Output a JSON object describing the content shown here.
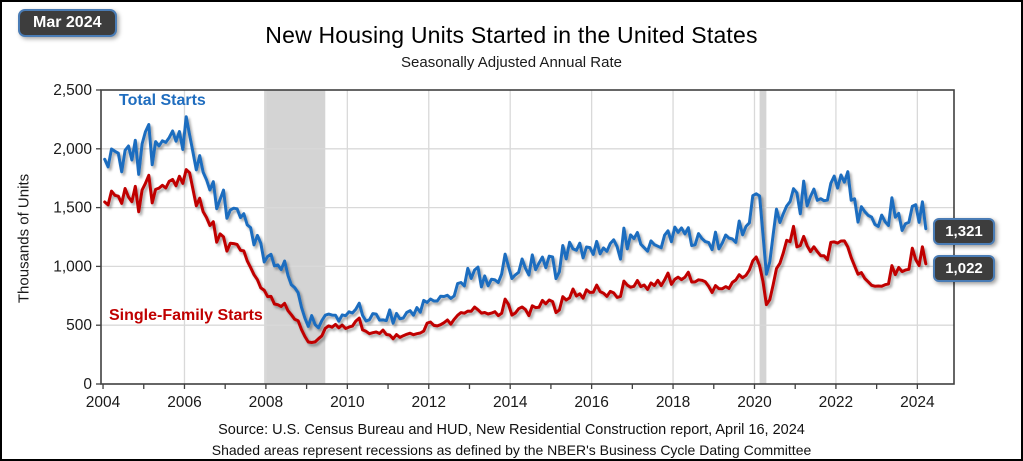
{
  "badge": {
    "label": "Mar 2024"
  },
  "header": {
    "title": "New Housing Units Started in the United States",
    "subtitle": "Seasonally Adjusted Annual Rate"
  },
  "y_axis": {
    "label": "Thousands of Units",
    "ticks": [
      "0",
      "500",
      "1,000",
      "1,500",
      "2,000",
      "2,500"
    ]
  },
  "x_axis": {
    "ticks": [
      "2004",
      "2006",
      "2008",
      "2010",
      "2012",
      "2014",
      "2016",
      "2018",
      "2020",
      "2022",
      "2024"
    ]
  },
  "series_labels": {
    "total": "Total Starts",
    "single": "Single-Family Starts"
  },
  "callouts": {
    "total": "1,321",
    "single": "1,022"
  },
  "footer": {
    "line1": "Source:  U.S. Census Bureau and HUD, New Residential Construction report, April 16, 2024",
    "line2": "Shaded areas represent recessions as defined by the NBER's Business Cycle Dating Committee"
  },
  "colors": {
    "total_line": "#1f6dbf",
    "single_line": "#c00000",
    "recession_band": "#d4d4d4",
    "gridline": "#d9d9d9",
    "axis": "#404040",
    "badge_bg": "#3d3d3d",
    "badge_border": "#4a7cb5"
  },
  "chart_data": {
    "type": "line",
    "title": "New Housing Units Started in the United States",
    "subtitle": "Seasonally Adjusted Annual Rate",
    "xlabel": "",
    "ylabel": "Thousands of Units",
    "ylim": [
      0,
      2500
    ],
    "xlim": [
      2004,
      2025
    ],
    "frequency": "monthly",
    "x_start": "2004-01",
    "x_end": "2024-03",
    "grid": true,
    "legend_position": "labels-on-chart",
    "recessions": [
      {
        "start": "2007-12",
        "end": "2009-06",
        "note": "NBER recession"
      },
      {
        "start": "2020-02",
        "end": "2020-04",
        "note": "NBER recession"
      }
    ],
    "latest_values": {
      "total_starts": 1321,
      "single_family_starts": 1022
    },
    "series": [
      {
        "name": "Total Starts",
        "color": "#1f6dbf",
        "values": [
          1911,
          1846,
          1998,
          1979,
          1963,
          1804,
          1987,
          2024,
          1905,
          2072,
          1782,
          2042,
          2144,
          2207,
          1864,
          2061,
          2025,
          2068,
          2054,
          2095,
          2151,
          2065,
          2147,
          1994,
          2273,
          2119,
          1969,
          1821,
          1942,
          1802,
          1737,
          1650,
          1720,
          1491,
          1570,
          1649,
          1409,
          1480,
          1495,
          1490,
          1415,
          1448,
          1354,
          1330,
          1183,
          1264,
          1197,
          1037,
          1084,
          1103,
          1005,
          1013,
          973,
          1046,
          923,
          844,
          820,
          777,
          652,
          560,
          490,
          582,
          505,
          478,
          540,
          585,
          594,
          586,
          585,
          534,
          588,
          581,
          614,
          604,
          636,
          687,
          583,
          536,
          546,
          599,
          594,
          543,
          545,
          539,
          630,
          517,
          600,
          554,
          561,
          608,
          623,
          585,
          650,
          610,
          711,
          694,
          723,
          706,
          706,
          747,
          744,
          754,
          728,
          749,
          854,
          863,
          834,
          983,
          898,
          969,
          994,
          826,
          919,
          835,
          891,
          885,
          863,
          936,
          1105,
          999,
          897,
          928,
          950,
          1063,
          984,
          927,
          1098,
          972,
          1028,
          1079,
          989,
          1087,
          1080,
          896,
          954,
          1178,
          1064,
          1205,
          1149,
          1137,
          1197,
          1072,
          1165,
          1160,
          1102,
          1213,
          1106,
          1157,
          1128,
          1195,
          1226,
          1168,
          1062,
          1326,
          1149,
          1268,
          1236,
          1288,
          1189,
          1159,
          1129,
          1217,
          1185,
          1172,
          1158,
          1265,
          1303,
          1210,
          1334,
          1290,
          1327,
          1276,
          1329,
          1177,
          1184,
          1279,
          1237,
          1211,
          1202,
          1142,
          1291,
          1149,
          1199,
          1267,
          1241,
          1233,
          1204,
          1386,
          1269,
          1340,
          1371,
          1601,
          1617,
          1599,
          1269,
          934,
          1038,
          1273,
          1487,
          1373,
          1448,
          1514,
          1551,
          1661,
          1625,
          1447,
          1725,
          1514,
          1594,
          1657,
          1562,
          1576,
          1559,
          1563,
          1706,
          1768,
          1666,
          1777,
          1716,
          1805,
          1562,
          1575,
          1377,
          1508,
          1465,
          1434,
          1419,
          1357,
          1340,
          1436,
          1380,
          1348,
          1583,
          1418,
          1451,
          1305,
          1363,
          1376,
          1510,
          1525,
          1374,
          1549,
          1321
        ]
      },
      {
        "name": "Single-Family Starts",
        "color": "#c00000",
        "values": [
          1548,
          1523,
          1640,
          1605,
          1597,
          1536,
          1662,
          1590,
          1550,
          1680,
          1464,
          1650,
          1706,
          1775,
          1540,
          1655,
          1666,
          1690,
          1667,
          1724,
          1739,
          1685,
          1766,
          1706,
          1823,
          1796,
          1654,
          1515,
          1580,
          1466,
          1416,
          1348,
          1380,
          1206,
          1276,
          1251,
          1130,
          1197,
          1194,
          1186,
          1137,
          1132,
          1048,
          991,
          929,
          887,
          817,
          798,
          743,
          745,
          680,
          674,
          659,
          685,
          623,
          589,
          550,
          538,
          463,
          404,
          357,
          353,
          358,
          385,
          410,
          474,
          494,
          483,
          507,
          478,
          501,
          472,
          484,
          492,
          535,
          560,
          460,
          448,
          428,
          436,
          442,
          429,
          458,
          421,
          417,
          384,
          420,
          396,
          411,
          423,
          432,
          419,
          428,
          434,
          450,
          517,
          527,
          498,
          494,
          504,
          521,
          544,
          509,
          550,
          584,
          607,
          602,
          620,
          618,
          654,
          631,
          603,
          608,
          595,
          603,
          615,
          582,
          601,
          722,
          677,
          586,
          603,
          640,
          655,
          633,
          582,
          665,
          650,
          652,
          711,
          682,
          714,
          701,
          607,
          630,
          742,
          714,
          732,
          808,
          748,
          767,
          730,
          801,
          779,
          781,
          841,
          786,
          772,
          745,
          787,
          775,
          736,
          745,
          875,
          840,
          823,
          831,
          880,
          828,
          842,
          804,
          860,
          838,
          882,
          837,
          885,
          943,
          848,
          890,
          908,
          888,
          907,
          951,
          867,
          868,
          886,
          882,
          870,
          830,
          778,
          837,
          811,
          810,
          828,
          813,
          864,
          884,
          929,
          904,
          924,
          969,
          1047,
          1080,
          1006,
          871,
          675,
          717,
          845,
          981,
          1026,
          1115,
          1222,
          1209,
          1340,
          1166,
          1177,
          1255,
          1176,
          1126,
          1167,
          1126,
          1091,
          1091,
          1056,
          1204,
          1208,
          1198,
          1216,
          1217,
          1165,
          1075,
          1004,
          934,
          947,
          897,
          869,
          839,
          832,
          833,
          832,
          844,
          851,
          1007,
          930,
          991,
          956,
          969,
          975,
          1155,
          1059,
          1008,
          1167,
          1022
        ]
      }
    ]
  }
}
